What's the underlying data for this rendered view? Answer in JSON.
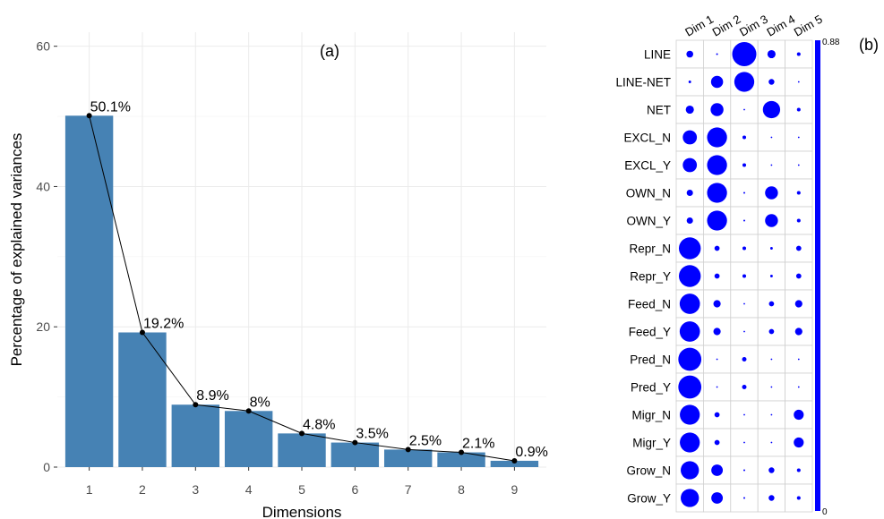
{
  "chart_data": [
    {
      "panel": "(a)",
      "type": "bar",
      "xlabel": "Dimensions",
      "ylabel": "Percentage of explained variances",
      "categories": [
        "1",
        "2",
        "3",
        "4",
        "5",
        "6",
        "7",
        "8",
        "9"
      ],
      "values": [
        50.1,
        19.2,
        8.9,
        8.0,
        4.8,
        3.5,
        2.5,
        2.1,
        0.9
      ],
      "data_labels": [
        "50.1%",
        "19.2%",
        "8.9%",
        "8%",
        "4.8%",
        "3.5%",
        "2.5%",
        "2.1%",
        "0.9%"
      ],
      "yticks": [
        0,
        20,
        40,
        60
      ],
      "ylim": [
        0,
        62
      ],
      "grid": true,
      "bar_color": "#4682B4",
      "line_color": "#000000",
      "overlay": "line with points"
    },
    {
      "panel": "(b)",
      "type": "heatmap",
      "columns": [
        "Dim 1",
        "Dim 2",
        "Dim 3",
        "Dim 4",
        "Dim 5"
      ],
      "rows": [
        "LINE",
        "LINE-NET",
        "NET",
        "EXCL_N",
        "EXCL_Y",
        "OWN_N",
        "OWN_Y",
        "Repr_N",
        "Repr_Y",
        "Feed_N",
        "Feed_Y",
        "Pred_N",
        "Pred_Y",
        "Migr_N",
        "Migr_Y",
        "Grow_N",
        "Grow_Y"
      ],
      "values": [
        [
          0.07,
          0.005,
          0.88,
          0.1,
          0.02
        ],
        [
          0.01,
          0.22,
          0.6,
          0.05,
          0.002
        ],
        [
          0.1,
          0.25,
          0.003,
          0.45,
          0.02
        ],
        [
          0.3,
          0.6,
          0.02,
          0.002,
          0.002
        ],
        [
          0.3,
          0.6,
          0.02,
          0.002,
          0.002
        ],
        [
          0.06,
          0.6,
          0.005,
          0.25,
          0.02
        ],
        [
          0.06,
          0.6,
          0.005,
          0.25,
          0.02
        ],
        [
          0.72,
          0.04,
          0.02,
          0.01,
          0.04
        ],
        [
          0.72,
          0.04,
          0.02,
          0.01,
          0.04
        ],
        [
          0.62,
          0.08,
          0.003,
          0.04,
          0.08
        ],
        [
          0.62,
          0.08,
          0.003,
          0.04,
          0.08
        ],
        [
          0.8,
          0.003,
          0.03,
          0.002,
          0.002
        ],
        [
          0.8,
          0.003,
          0.03,
          0.002,
          0.002
        ],
        [
          0.6,
          0.04,
          0.003,
          0.003,
          0.15
        ],
        [
          0.6,
          0.04,
          0.003,
          0.003,
          0.15
        ],
        [
          0.5,
          0.2,
          0.005,
          0.05,
          0.02
        ],
        [
          0.5,
          0.2,
          0.005,
          0.05,
          0.02
        ]
      ],
      "colorbar_min": "0",
      "colorbar_max": "0.88",
      "color": "#0000FF"
    }
  ]
}
